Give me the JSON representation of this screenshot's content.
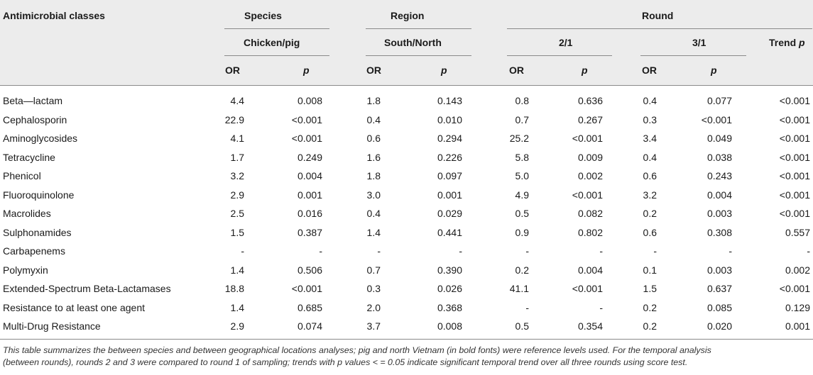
{
  "header": {
    "first_col": "Antimicrobial classes",
    "groups": {
      "species": "Species",
      "region": "Region",
      "round": "Round"
    },
    "subgroups": {
      "species": "Chicken/pig",
      "region": "South/North",
      "round_2_1": "2/1",
      "round_3_1": "3/1",
      "trend": "Trend p"
    },
    "or_label": "OR",
    "p_label": "p"
  },
  "rows": [
    {
      "name": "Beta—lactam",
      "sp_or": "4.4",
      "sp_p": "0.008",
      "rg_or": "1.8",
      "rg_p": "0.143",
      "r2_or": "0.8",
      "r2_p": "0.636",
      "r3_or": "0.4",
      "r3_p": "0.077",
      "trend": "<0.001"
    },
    {
      "name": "Cephalosporin",
      "sp_or": "22.9",
      "sp_p": "<0.001",
      "rg_or": "0.4",
      "rg_p": "0.010",
      "r2_or": "0.7",
      "r2_p": "0.267",
      "r3_or": "0.3",
      "r3_p": "<0.001",
      "trend": "<0.001"
    },
    {
      "name": "Aminoglycosides",
      "sp_or": "4.1",
      "sp_p": "<0.001",
      "rg_or": "0.6",
      "rg_p": "0.294",
      "r2_or": "25.2",
      "r2_p": "<0.001",
      "r3_or": "3.4",
      "r3_p": "0.049",
      "trend": "<0.001"
    },
    {
      "name": "Tetracycline",
      "sp_or": "1.7",
      "sp_p": "0.249",
      "rg_or": "1.6",
      "rg_p": "0.226",
      "r2_or": "5.8",
      "r2_p": "0.009",
      "r3_or": "0.4",
      "r3_p": "0.038",
      "trend": "<0.001"
    },
    {
      "name": "Phenicol",
      "sp_or": "3.2",
      "sp_p": "0.004",
      "rg_or": "1.8",
      "rg_p": "0.097",
      "r2_or": "5.0",
      "r2_p": "0.002",
      "r3_or": "0.6",
      "r3_p": "0.243",
      "trend": "<0.001"
    },
    {
      "name": "Fluoroquinolone",
      "sp_or": "2.9",
      "sp_p": "0.001",
      "rg_or": "3.0",
      "rg_p": "0.001",
      "r2_or": "4.9",
      "r2_p": "<0.001",
      "r3_or": "3.2",
      "r3_p": "0.004",
      "trend": "<0.001"
    },
    {
      "name": "Macrolides",
      "sp_or": "2.5",
      "sp_p": "0.016",
      "rg_or": "0.4",
      "rg_p": "0.029",
      "r2_or": "0.5",
      "r2_p": "0.082",
      "r3_or": "0.2",
      "r3_p": "0.003",
      "trend": "<0.001"
    },
    {
      "name": "Sulphonamides",
      "sp_or": "1.5",
      "sp_p": "0.387",
      "rg_or": "1.4",
      "rg_p": "0.441",
      "r2_or": "0.9",
      "r2_p": "0.802",
      "r3_or": "0.6",
      "r3_p": "0.308",
      "trend": "0.557"
    },
    {
      "name": "Carbapenems",
      "sp_or": "-",
      "sp_p": "-",
      "rg_or": "-",
      "rg_p": "-",
      "r2_or": "-",
      "r2_p": "-",
      "r3_or": "-",
      "r3_p": "-",
      "trend": "-"
    },
    {
      "name": "Polymyxin",
      "sp_or": "1.4",
      "sp_p": "0.506",
      "rg_or": "0.7",
      "rg_p": "0.390",
      "r2_or": "0.2",
      "r2_p": "0.004",
      "r3_or": "0.1",
      "r3_p": "0.003",
      "trend": "0.002"
    },
    {
      "name": "Extended-Spectrum Beta-Lactamases",
      "sp_or": "18.8",
      "sp_p": "<0.001",
      "rg_or": "0.3",
      "rg_p": "0.026",
      "r2_or": "41.1",
      "r2_p": "<0.001",
      "r3_or": "1.5",
      "r3_p": "0.637",
      "trend": "<0.001"
    },
    {
      "name": "Resistance to at least one agent",
      "sp_or": "1.4",
      "sp_p": "0.685",
      "rg_or": "2.0",
      "rg_p": "0.368",
      "r2_or": "-",
      "r2_p": "-",
      "r3_or": "0.2",
      "r3_p": "0.085",
      "trend": "0.129"
    },
    {
      "name": "Multi-Drug Resistance",
      "sp_or": "2.9",
      "sp_p": "0.074",
      "rg_or": "3.7",
      "rg_p": "0.008",
      "r2_or": "0.5",
      "r2_p": "0.354",
      "r3_or": "0.2",
      "r3_p": "0.020",
      "trend": "0.001"
    }
  ],
  "footnote": {
    "line1": "This table summarizes the between species and between geographical locations analyses; pig and north Vietnam (in bold fonts) were reference levels used. For the temporal analysis",
    "line2": "(between rounds), rounds 2 and 3 were compared to round 1 of sampling; trends with p values < = 0.05 indicate significant temporal trend over all three rounds using score test."
  },
  "colors": {
    "header_bg": "#ececec",
    "rule": "#8a8a8a",
    "text": "#1a1a1a"
  }
}
